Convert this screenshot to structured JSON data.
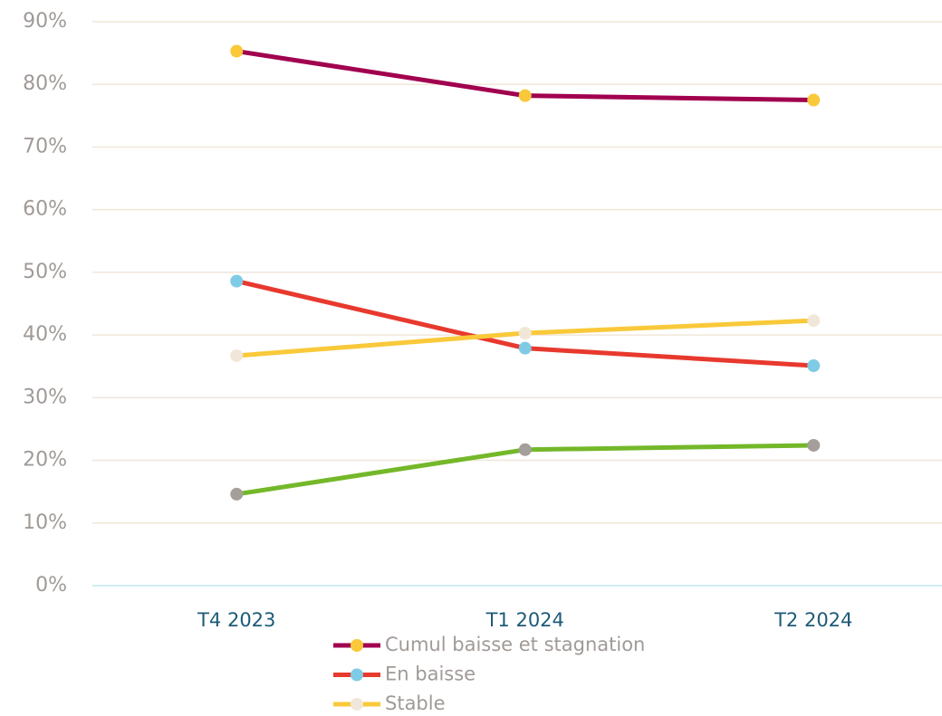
{
  "chart_data": {
    "type": "line",
    "categories": [
      "T4 2023",
      "T1 2024",
      "T2 2024"
    ],
    "series": [
      {
        "name": "Cumul baisse et stagnation",
        "color": "#a1004f",
        "marker_color": "#f9c93a",
        "values": [
          85.3,
          78.2,
          77.5
        ]
      },
      {
        "name": "En baisse",
        "color": "#e8392e",
        "marker_color": "#7fcbe6",
        "values": [
          48.6,
          37.9,
          35.1
        ]
      },
      {
        "name": "Stable",
        "color": "#f9c93a",
        "marker_color": "#f1e7d8",
        "values": [
          36.7,
          40.3,
          42.3
        ]
      },
      {
        "color": "#74b82a",
        "marker_color": "#a59f9b",
        "values": [
          14.6,
          21.7,
          22.4
        ]
      }
    ],
    "ylim": [
      0,
      90
    ],
    "yticks": [
      {
        "value": 0,
        "label": "0%"
      },
      {
        "value": 10,
        "label": "10%"
      },
      {
        "value": 20,
        "label": "20%"
      },
      {
        "value": 30,
        "label": "30%"
      },
      {
        "value": 40,
        "label": "40%"
      },
      {
        "value": 50,
        "label": "50%"
      },
      {
        "value": 60,
        "label": "60%"
      },
      {
        "value": 70,
        "label": "70%"
      },
      {
        "value": 80,
        "label": "80%"
      },
      {
        "value": 90,
        "label": "90%"
      }
    ],
    "grid": true
  }
}
